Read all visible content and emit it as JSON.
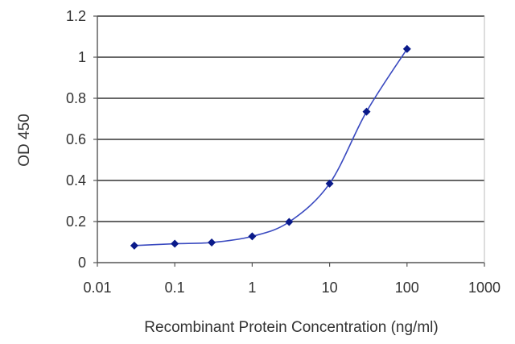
{
  "chart_data": {
    "type": "line",
    "title": "",
    "xlabel": "Recombinant Protein Concentration (ng/ml)",
    "ylabel": "OD 450",
    "x_scale": "log",
    "xlim": [
      0.01,
      1000
    ],
    "ylim": [
      0,
      1.2
    ],
    "x_ticks": [
      0.01,
      0.1,
      1,
      10,
      100,
      1000
    ],
    "x_tick_labels": [
      "0.01",
      "0.1",
      "1",
      "10",
      "100",
      "1000"
    ],
    "y_ticks": [
      0,
      0.2,
      0.4,
      0.6,
      0.8,
      1,
      1.2
    ],
    "y_tick_labels": [
      "0",
      "0.2",
      "0.4",
      "0.6",
      "0.8",
      "1",
      "1.2"
    ],
    "grid": "horizontal",
    "legend": "none",
    "series": [
      {
        "color": "#3a4ac0",
        "marker_color": "#0a1a8a",
        "x": [
          0.03,
          0.1,
          0.3,
          1,
          3,
          10,
          30,
          100
        ],
        "y": [
          0.083,
          0.092,
          0.098,
          0.128,
          0.198,
          0.385,
          0.735,
          1.04
        ]
      }
    ]
  }
}
